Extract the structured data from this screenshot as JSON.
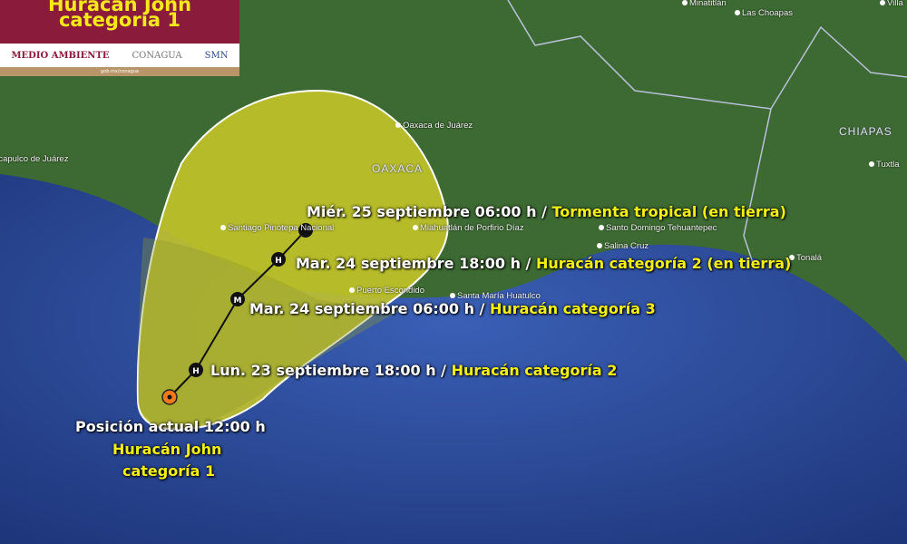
{
  "banner": {
    "title_line1": "Huracán John",
    "title_line2": "categoría 1",
    "logos": [
      "MEDIO AMBIENTE",
      "CONAGUA",
      "SMN"
    ],
    "footer": "gob.mx/conagua",
    "colors": {
      "title_bg": "#8a1b3a",
      "title_text": "#f6e81a"
    }
  },
  "forecast": [
    {
      "time": "Miér. 25 septiembre 06:00 h",
      "sep": " / ",
      "status": "Tormenta tropical (en tierra)",
      "marker": ""
    },
    {
      "time": "Mar. 24 septiembre 18:00 h",
      "sep": " / ",
      "status": "Huracán categoría 2 (en tierra)",
      "marker": "H"
    },
    {
      "time": "Mar. 24 septiembre 06:00 h",
      "sep": " / ",
      "status": "Huracán categoría 3",
      "marker": "M"
    },
    {
      "time": "Lun. 23 septiembre 18:00 h",
      "sep": " / ",
      "status": "Huracán categoría 2",
      "marker": "H"
    }
  ],
  "current": {
    "label": "Posición actual 12:00 h",
    "name": "Huracán John",
    "category": "categoría 1"
  },
  "states": [
    "OAXACA",
    "CHIAPAS"
  ],
  "cities": [
    "Minatitlán",
    "Las Choapas",
    "Villa",
    "Tuxtla",
    "Tonalá",
    "Salina Cruz",
    "Santo Domingo Tehuantepec",
    "Santa María Huatulco",
    "Puerto Escondido",
    "Miahuatlán de Porfirio Díaz",
    "Santiago Pinotepa Nacional",
    "Oaxaca de Juárez",
    "Acapulco de Juárez"
  ],
  "colors": {
    "cone": "#c8c82a",
    "ocean": "#2b4a9a",
    "land": "#3d6a32",
    "current_marker": "#f07a1a"
  }
}
